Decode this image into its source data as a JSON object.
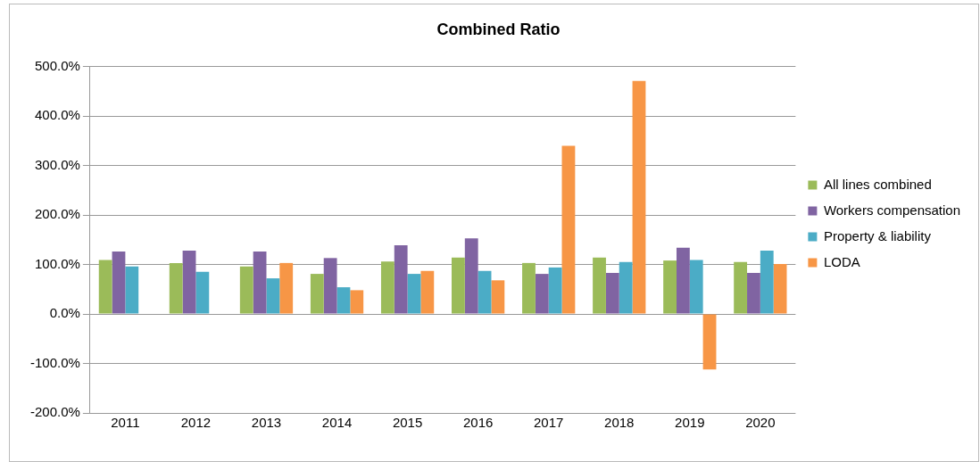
{
  "chart_data": {
    "type": "bar",
    "title": "Combined Ratio",
    "categories": [
      "2011",
      "2012",
      "2013",
      "2014",
      "2015",
      "2016",
      "2017",
      "2018",
      "2019",
      "2020"
    ],
    "series": [
      {
        "name": "All lines combined",
        "color": "#9bbb59",
        "values": [
          109,
          103,
          96,
          81,
          106,
          114,
          103,
          114,
          108,
          105
        ]
      },
      {
        "name": "Workers compensation",
        "color": "#8064a2",
        "values": [
          126,
          128,
          126,
          113,
          139,
          153,
          81,
          83,
          134,
          83
        ]
      },
      {
        "name": "Property & liability",
        "color": "#4bacc6",
        "values": [
          96,
          85,
          72,
          54,
          81,
          87,
          94,
          105,
          109,
          128
        ]
      },
      {
        "name": "LODA",
        "color": "#f79646",
        "values": [
          null,
          null,
          103,
          48,
          87,
          68,
          340,
          471,
          -112,
          101
        ]
      }
    ],
    "ylim": [
      -200,
      500
    ],
    "yticks": [
      {
        "value": -200,
        "label": "-200.0%"
      },
      {
        "value": -100,
        "label": "-100.0%"
      },
      {
        "value": 0,
        "label": "0.0%"
      },
      {
        "value": 100,
        "label": "100.0%"
      },
      {
        "value": 200,
        "label": "200.0%"
      },
      {
        "value": 300,
        "label": "300.0%"
      },
      {
        "value": 400,
        "label": "400.0%"
      },
      {
        "value": 500,
        "label": "500.0%"
      }
    ],
    "grid": "y",
    "legend": "right"
  }
}
